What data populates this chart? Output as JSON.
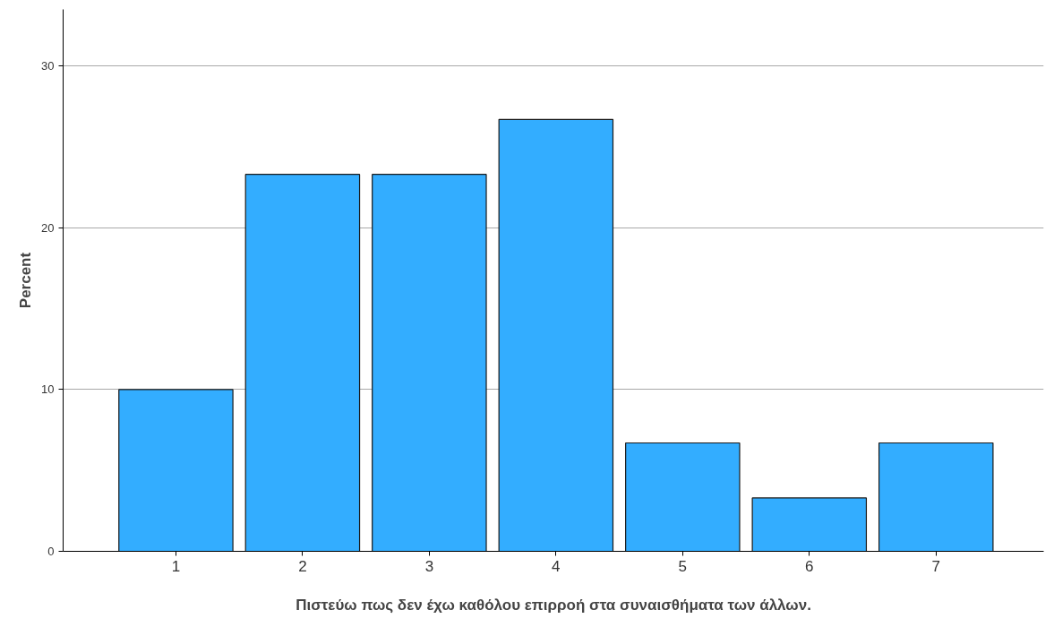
{
  "chart_data": {
    "type": "bar",
    "xlabel": "Πιστεύω πως δεν έχω καθόλου επιρροή στα συναισθήματα των άλλων.",
    "ylabel": "Percent",
    "categories": [
      "1",
      "2",
      "3",
      "4",
      "5",
      "6",
      "7"
    ],
    "values": [
      10,
      23.3,
      23.3,
      26.7,
      6.7,
      3.3,
      6.7
    ],
    "color": "#33adff",
    "ylim": [
      0,
      33.5
    ],
    "yticks": [
      0,
      10,
      20,
      30
    ],
    "grid": "y"
  }
}
